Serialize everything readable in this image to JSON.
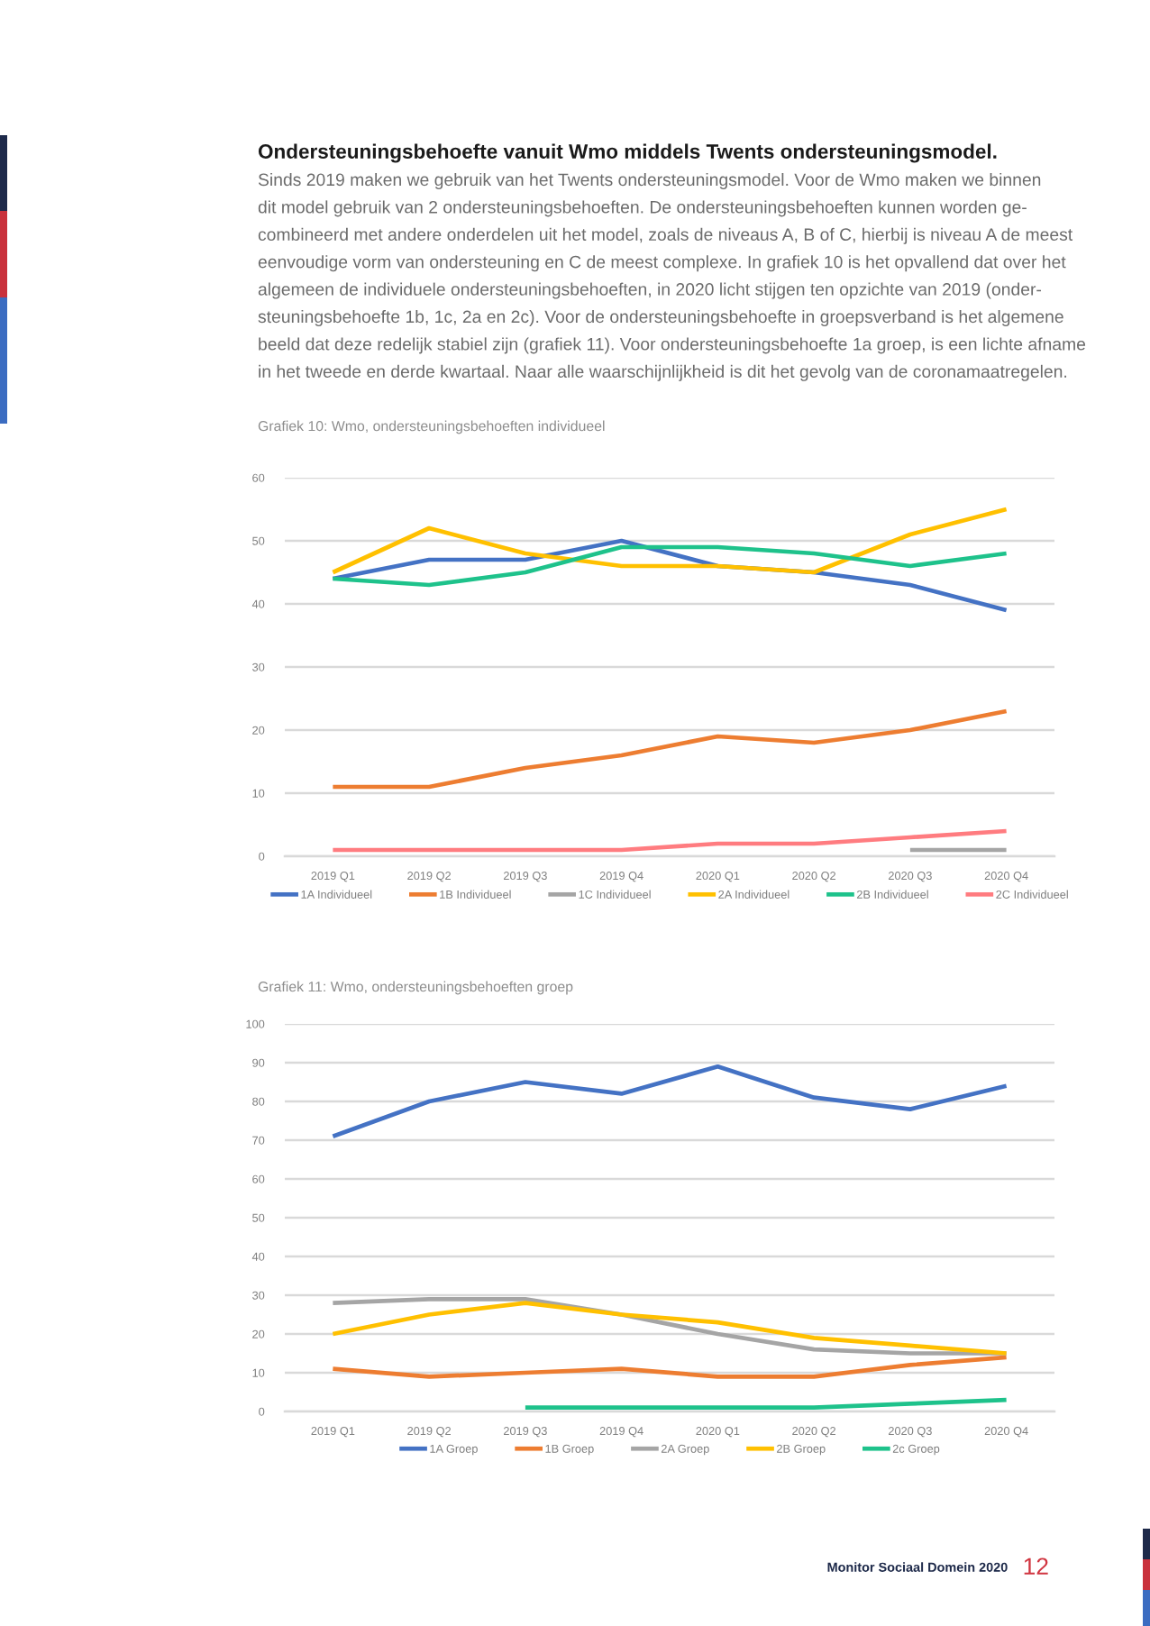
{
  "chart_data": [
    {
      "type": "other",
      "title": "Ondersteuningsbehoefte vanuit Wmo middels Twents ondersteuningsmodel.",
      "annotations": [
        "Sinds 2019 maken we gebruik van het Twents ondersteuningsmodel. Voor de Wmo maken we binnen",
        "dit model gebruik van 2 ondersteuningsbehoeften. De ondersteuningsbehoeften kunnen worden ge-",
        "combineerd met andere onderdelen uit het model, zoals de niveaus A, B of C, hierbij is niveau A de meest",
        "eenvoudige vorm van ondersteuning en C de meest complexe. In grafiek 10 is het opvallend dat over het",
        "algemeen de individuele ondersteuningsbehoeften, in 2020 licht stijgen ten opzichte van 2019 (onder-",
        "steuningsbehoefte 1b, 1c, 2a en 2c). Voor de ondersteuningsbehoefte in groepsverband is het algemene",
        "beeld dat deze redelijk stabiel zijn (grafiek 11). Voor ondersteuningsbehoefte 1a groep, is een lichte afname",
        "in het tweede en derde kwartaal. Naar alle waarschijnlijkheid is dit het gevolg van de coronamaatregelen."
      ]
    },
    {
      "type": "line",
      "title": "Grafiek 10: Wmo, ondersteuningsbehoeften individueel",
      "categories": [
        "2019 Q1",
        "2019 Q2",
        "2019 Q3",
        "2019 Q4",
        "2020 Q1",
        "2020 Q2",
        "2020 Q3",
        "2020 Q4"
      ],
      "ylim": [
        0,
        60
      ],
      "yticks": [
        0,
        10,
        20,
        30,
        40,
        50,
        60
      ],
      "grid": "y",
      "legend": "bottom",
      "series": [
        {
          "name": "1A Individueel",
          "color": "#4472c4",
          "values": [
            44,
            47,
            47,
            50,
            46,
            45,
            43,
            39
          ]
        },
        {
          "name": "1B Individueel",
          "color": "#ed7d31",
          "values": [
            11,
            11,
            14,
            16,
            19,
            18,
            20,
            23
          ]
        },
        {
          "name": "1C Individueel",
          "color": "#a5a5a5",
          "values": [
            null,
            null,
            null,
            null,
            null,
            null,
            1,
            1
          ]
        },
        {
          "name": "2A Individueel",
          "color": "#ffc000",
          "values": [
            45,
            52,
            48,
            46,
            46,
            45,
            51,
            55
          ]
        },
        {
          "name": "2B Individueel",
          "color": "#1ec28b",
          "values": [
            44,
            43,
            45,
            49,
            49,
            48,
            46,
            48
          ]
        },
        {
          "name": "2C Individueel",
          "color": "#ff7c80",
          "values": [
            1,
            1,
            1,
            1,
            2,
            2,
            3,
            4
          ]
        }
      ]
    },
    {
      "type": "line",
      "title": "Grafiek 11: Wmo, ondersteuningsbehoeften groep",
      "categories": [
        "2019 Q1",
        "2019 Q2",
        "2019 Q3",
        "2019 Q4",
        "2020 Q1",
        "2020 Q2",
        "2020 Q3",
        "2020 Q4"
      ],
      "ylim": [
        0,
        100
      ],
      "yticks": [
        0,
        10,
        20,
        30,
        40,
        50,
        60,
        70,
        80,
        90,
        100
      ],
      "grid": "y",
      "legend": "bottom",
      "series": [
        {
          "name": "1A Groep",
          "color": "#4472c4",
          "values": [
            71,
            80,
            85,
            82,
            89,
            81,
            78,
            84
          ]
        },
        {
          "name": "1B Groep",
          "color": "#ed7d31",
          "values": [
            11,
            9,
            10,
            11,
            9,
            9,
            12,
            14
          ]
        },
        {
          "name": "2A Groep",
          "color": "#a5a5a5",
          "values": [
            28,
            29,
            29,
            25,
            20,
            16,
            15,
            15
          ]
        },
        {
          "name": "2B Groep",
          "color": "#ffc000",
          "values": [
            20,
            25,
            28,
            25,
            23,
            19,
            17,
            15
          ]
        },
        {
          "name": "2c Groep",
          "color": "#1ec28b",
          "values": [
            null,
            null,
            1,
            1,
            1,
            1,
            2,
            3
          ]
        }
      ]
    },
    {
      "type": "other",
      "annotations": [
        "Monitor Sociaal Domein 2020",
        "12"
      ]
    }
  ]
}
